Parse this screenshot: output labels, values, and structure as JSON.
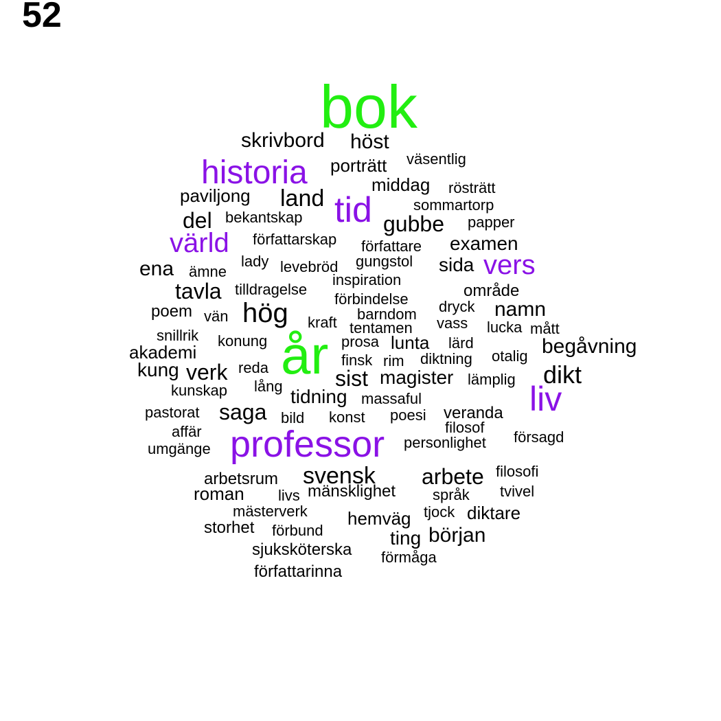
{
  "panel_label": "52",
  "colors": {
    "top": "#22ee11",
    "high": "#8a12e6",
    "normal": "#000000"
  },
  "words": [
    {
      "text": "bok",
      "tier": "top"
    },
    {
      "text": "år",
      "tier": "top"
    },
    {
      "text": "historia",
      "tier": "high"
    },
    {
      "text": "tid",
      "tier": "high"
    },
    {
      "text": "värld",
      "tier": "high"
    },
    {
      "text": "vers",
      "tier": "high"
    },
    {
      "text": "liv",
      "tier": "high"
    },
    {
      "text": "professor",
      "tier": "high"
    },
    {
      "text": "skrivbord",
      "tier": "normal"
    },
    {
      "text": "höst",
      "tier": "normal"
    },
    {
      "text": "porträtt",
      "tier": "normal"
    },
    {
      "text": "väsentlig",
      "tier": "normal"
    },
    {
      "text": "middag",
      "tier": "normal"
    },
    {
      "text": "rösträtt",
      "tier": "normal"
    },
    {
      "text": "paviljong",
      "tier": "normal"
    },
    {
      "text": "land",
      "tier": "normal"
    },
    {
      "text": "sommartorp",
      "tier": "normal"
    },
    {
      "text": "del",
      "tier": "normal"
    },
    {
      "text": "bekantskap",
      "tier": "normal"
    },
    {
      "text": "gubbe",
      "tier": "normal"
    },
    {
      "text": "papper",
      "tier": "normal"
    },
    {
      "text": "författarskap",
      "tier": "normal"
    },
    {
      "text": "författare",
      "tier": "normal"
    },
    {
      "text": "examen",
      "tier": "normal"
    },
    {
      "text": "lady",
      "tier": "normal"
    },
    {
      "text": "levebröd",
      "tier": "normal"
    },
    {
      "text": "gungstol",
      "tier": "normal"
    },
    {
      "text": "sida",
      "tier": "normal"
    },
    {
      "text": "ena",
      "tier": "normal"
    },
    {
      "text": "ämne",
      "tier": "normal"
    },
    {
      "text": "inspiration",
      "tier": "normal"
    },
    {
      "text": "tavla",
      "tier": "normal"
    },
    {
      "text": "tilldragelse",
      "tier": "normal"
    },
    {
      "text": "område",
      "tier": "normal"
    },
    {
      "text": "förbindelse",
      "tier": "normal"
    },
    {
      "text": "poem",
      "tier": "normal"
    },
    {
      "text": "vän",
      "tier": "normal"
    },
    {
      "text": "hög",
      "tier": "normal"
    },
    {
      "text": "barndom",
      "tier": "normal"
    },
    {
      "text": "dryck",
      "tier": "normal"
    },
    {
      "text": "namn",
      "tier": "normal"
    },
    {
      "text": "kraft",
      "tier": "normal"
    },
    {
      "text": "tentamen",
      "tier": "normal"
    },
    {
      "text": "vass",
      "tier": "normal"
    },
    {
      "text": "lucka",
      "tier": "normal"
    },
    {
      "text": "mått",
      "tier": "normal"
    },
    {
      "text": "snillrik",
      "tier": "normal"
    },
    {
      "text": "konung",
      "tier": "normal"
    },
    {
      "text": "prosa",
      "tier": "normal"
    },
    {
      "text": "lunta",
      "tier": "normal"
    },
    {
      "text": "lärd",
      "tier": "normal"
    },
    {
      "text": "begåvning",
      "tier": "normal"
    },
    {
      "text": "akademi",
      "tier": "normal"
    },
    {
      "text": "finsk",
      "tier": "normal"
    },
    {
      "text": "rim",
      "tier": "normal"
    },
    {
      "text": "diktning",
      "tier": "normal"
    },
    {
      "text": "otalig",
      "tier": "normal"
    },
    {
      "text": "kung",
      "tier": "normal"
    },
    {
      "text": "verk",
      "tier": "normal"
    },
    {
      "text": "reda",
      "tier": "normal"
    },
    {
      "text": "sist",
      "tier": "normal"
    },
    {
      "text": "magister",
      "tier": "normal"
    },
    {
      "text": "lämplig",
      "tier": "normal"
    },
    {
      "text": "dikt",
      "tier": "normal"
    },
    {
      "text": "kunskap",
      "tier": "normal"
    },
    {
      "text": "lång",
      "tier": "normal"
    },
    {
      "text": "tidning",
      "tier": "normal"
    },
    {
      "text": "massaful",
      "tier": "normal"
    },
    {
      "text": "pastorat",
      "tier": "normal"
    },
    {
      "text": "saga",
      "tier": "normal"
    },
    {
      "text": "bild",
      "tier": "normal"
    },
    {
      "text": "konst",
      "tier": "normal"
    },
    {
      "text": "poesi",
      "tier": "normal"
    },
    {
      "text": "veranda",
      "tier": "normal"
    },
    {
      "text": "filosof",
      "tier": "normal"
    },
    {
      "text": "affär",
      "tier": "normal"
    },
    {
      "text": "försagd",
      "tier": "normal"
    },
    {
      "text": "umgänge",
      "tier": "normal"
    },
    {
      "text": "personlighet",
      "tier": "normal"
    },
    {
      "text": "svensk",
      "tier": "normal"
    },
    {
      "text": "arbete",
      "tier": "normal"
    },
    {
      "text": "filosofi",
      "tier": "normal"
    },
    {
      "text": "arbetsrum",
      "tier": "normal"
    },
    {
      "text": "roman",
      "tier": "normal"
    },
    {
      "text": "livs",
      "tier": "normal"
    },
    {
      "text": "mänsklighet",
      "tier": "normal"
    },
    {
      "text": "språk",
      "tier": "normal"
    },
    {
      "text": "tvivel",
      "tier": "normal"
    },
    {
      "text": "mästerverk",
      "tier": "normal"
    },
    {
      "text": "tjock",
      "tier": "normal"
    },
    {
      "text": "diktare",
      "tier": "normal"
    },
    {
      "text": "hemväg",
      "tier": "normal"
    },
    {
      "text": "storhet",
      "tier": "normal"
    },
    {
      "text": "förbund",
      "tier": "normal"
    },
    {
      "text": "ting",
      "tier": "normal"
    },
    {
      "text": "början",
      "tier": "normal"
    },
    {
      "text": "sjuksköterska",
      "tier": "normal"
    },
    {
      "text": "förmåga",
      "tier": "normal"
    },
    {
      "text": "författarinna",
      "tier": "normal"
    }
  ]
}
